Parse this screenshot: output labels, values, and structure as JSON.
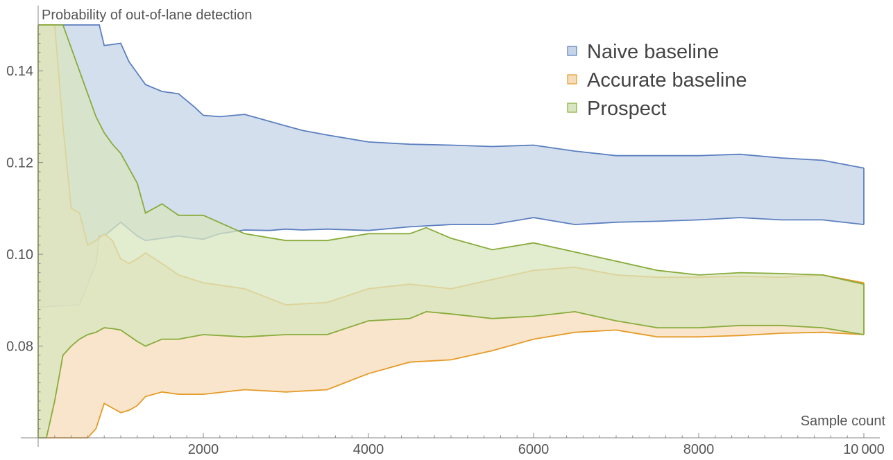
{
  "chart_data": {
    "type": "area",
    "title": "",
    "xlabel": "Sample count",
    "ylabel": "Probability of out-of-lane detection",
    "xlim": [
      0,
      10000
    ],
    "ylim": [
      0.06,
      0.15
    ],
    "x_ticks": [
      2000,
      4000,
      6000,
      8000,
      10000
    ],
    "x_tick_labels": [
      "2000",
      "4000",
      "6000",
      "8000",
      "10 000"
    ],
    "y_ticks": [
      0.08,
      0.1,
      0.12,
      0.14
    ],
    "y_tick_labels": [
      "0.08",
      "0.10",
      "0.12",
      "0.14"
    ],
    "grid": false,
    "legend_position": "top-right",
    "series": [
      {
        "name": "Naive baseline",
        "color": "#5b7fbf",
        "fill": "#c6d4e8",
        "x": [
          0,
          500,
          700,
          740,
          800,
          1000,
          1100,
          1200,
          1300,
          1500,
          1700,
          1900,
          2000,
          2200,
          2500,
          2800,
          3000,
          3200,
          3500,
          4000,
          4500,
          5000,
          5500,
          6000,
          6500,
          7000,
          7500,
          8000,
          8500,
          9000,
          9500,
          10000
        ],
        "upper": [
          0.15,
          0.15,
          0.15,
          0.15,
          0.1455,
          0.146,
          0.142,
          0.1395,
          0.137,
          0.1355,
          0.135,
          0.132,
          0.1303,
          0.13,
          0.1305,
          0.129,
          0.128,
          0.127,
          0.126,
          0.1245,
          0.124,
          0.1238,
          0.1235,
          0.1238,
          0.1225,
          0.1215,
          0.1215,
          0.1215,
          0.1218,
          0.121,
          0.1205,
          0.1188
        ],
        "lower": [
          0.0885,
          0.089,
          0.098,
          0.104,
          0.104,
          0.107,
          0.1055,
          0.104,
          0.103,
          0.1035,
          0.104,
          0.1035,
          0.1033,
          0.1045,
          0.1053,
          0.1052,
          0.1055,
          0.1053,
          0.1055,
          0.1052,
          0.106,
          0.1065,
          0.1065,
          0.108,
          0.1065,
          0.107,
          0.1072,
          0.1075,
          0.108,
          0.1075,
          0.1075,
          0.1065
        ]
      },
      {
        "name": "Accurate baseline",
        "color": "#e59b28",
        "fill": "#f5dcba",
        "x": [
          0,
          200,
          300,
          400,
          500,
          600,
          700,
          800,
          900,
          1000,
          1100,
          1200,
          1300,
          1500,
          1700,
          2000,
          2500,
          3000,
          3500,
          4000,
          4500,
          5000,
          5500,
          6000,
          6500,
          7000,
          7500,
          8000,
          8500,
          9000,
          9500,
          10000
        ],
        "upper": [
          0.15,
          0.15,
          0.128,
          0.11,
          0.109,
          0.102,
          0.103,
          0.1045,
          0.103,
          0.099,
          0.098,
          0.099,
          0.1003,
          0.098,
          0.0955,
          0.0938,
          0.0925,
          0.089,
          0.0895,
          0.0925,
          0.0935,
          0.0925,
          0.0945,
          0.0965,
          0.0972,
          0.0955,
          0.095,
          0.095,
          0.0952,
          0.095,
          0.0955,
          0.0938
        ],
        "lower": [
          0.06,
          0.06,
          0.06,
          0.06,
          0.06,
          0.06,
          0.062,
          0.0675,
          0.0665,
          0.0655,
          0.066,
          0.067,
          0.069,
          0.07,
          0.0695,
          0.0695,
          0.0705,
          0.07,
          0.0705,
          0.074,
          0.0765,
          0.077,
          0.079,
          0.0815,
          0.083,
          0.0835,
          0.082,
          0.082,
          0.0823,
          0.0828,
          0.083,
          0.0825
        ]
      },
      {
        "name": "Prospect",
        "color": "#88ab3a",
        "fill": "#d8e6bf",
        "x": [
          0,
          100,
          200,
          300,
          400,
          500,
          600,
          700,
          800,
          900,
          1000,
          1200,
          1300,
          1500,
          1700,
          2000,
          2500,
          3000,
          3500,
          4000,
          4500,
          4700,
          5000,
          5500,
          6000,
          6500,
          7000,
          7500,
          8000,
          8500,
          9000,
          9500,
          10000
        ],
        "upper": [
          0.15,
          0.15,
          0.15,
          0.15,
          0.145,
          0.14,
          0.135,
          0.13,
          0.1265,
          0.124,
          0.122,
          0.1155,
          0.109,
          0.111,
          0.1085,
          0.1085,
          0.1045,
          0.103,
          0.103,
          0.1045,
          0.1045,
          0.1058,
          0.1035,
          0.101,
          0.1025,
          0.1005,
          0.0985,
          0.0965,
          0.0955,
          0.096,
          0.0958,
          0.0955,
          0.0935
        ],
        "lower": [
          0.06,
          0.06,
          0.068,
          0.078,
          0.08,
          0.0815,
          0.0825,
          0.083,
          0.084,
          0.0838,
          0.0835,
          0.081,
          0.08,
          0.0815,
          0.0815,
          0.0825,
          0.082,
          0.0825,
          0.0825,
          0.0855,
          0.086,
          0.0875,
          0.087,
          0.086,
          0.0865,
          0.0875,
          0.0855,
          0.084,
          0.084,
          0.0845,
          0.0845,
          0.084,
          0.0825
        ]
      }
    ]
  }
}
